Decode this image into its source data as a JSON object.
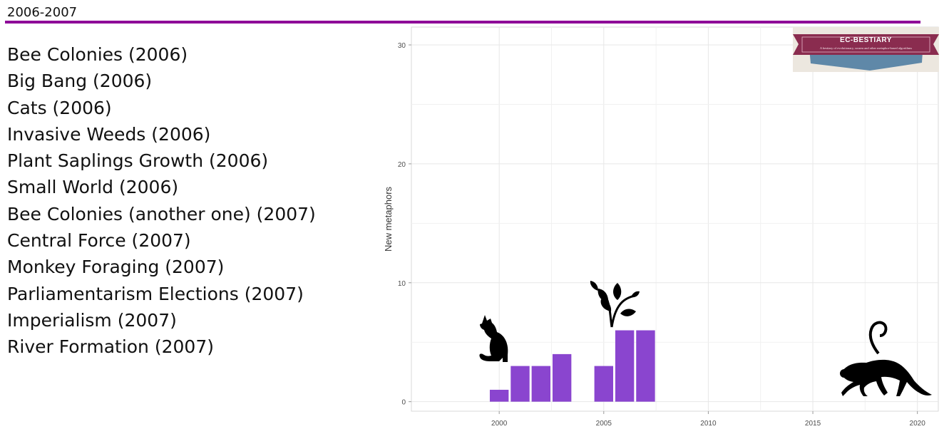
{
  "slide": {
    "title": "2006-2007",
    "accent_color": "#8e0a98"
  },
  "metaphor_list": [
    "Bee Colonies (2006)",
    "Big Bang (2006)",
    "Cats (2006)",
    "Invasive Weeds (2006)",
    "Plant Saplings Growth (2006)",
    "Small World (2006)",
    "Bee Colonies (another one) (2007)",
    "Central Force (2007)",
    "Monkey Foraging (2007)",
    "Parliamentarism Elections (2007)",
    "Imperialism (2007)",
    "River Formation (2007)"
  ],
  "badge": {
    "title": "EC-BESTIARY",
    "subtitle": "A bestiary of evolutionary, swarm and other metaphor-based algorithms",
    "ribbon_color": "#8a2c4f",
    "banner_color": "#5f88a8"
  },
  "decorations": {
    "icons": [
      "cat-silhouette-icon",
      "sapling-plant-icon",
      "monkey-silhouette-icon"
    ]
  },
  "chart_data": {
    "type": "bar",
    "ylabel": "New metaphors",
    "xlim": [
      1995.8,
      2021
    ],
    "ylim": [
      -0.8,
      31.5
    ],
    "x_ticks": [
      2000,
      2005,
      2010,
      2015,
      2020
    ],
    "y_ticks": [
      0,
      10,
      20,
      30
    ],
    "grid": true,
    "bar_color": "#8a45cf",
    "x": [
      2000,
      2001,
      2002,
      2003,
      2005,
      2006,
      2007
    ],
    "values": [
      1,
      3,
      3,
      4,
      3,
      6,
      6
    ]
  }
}
